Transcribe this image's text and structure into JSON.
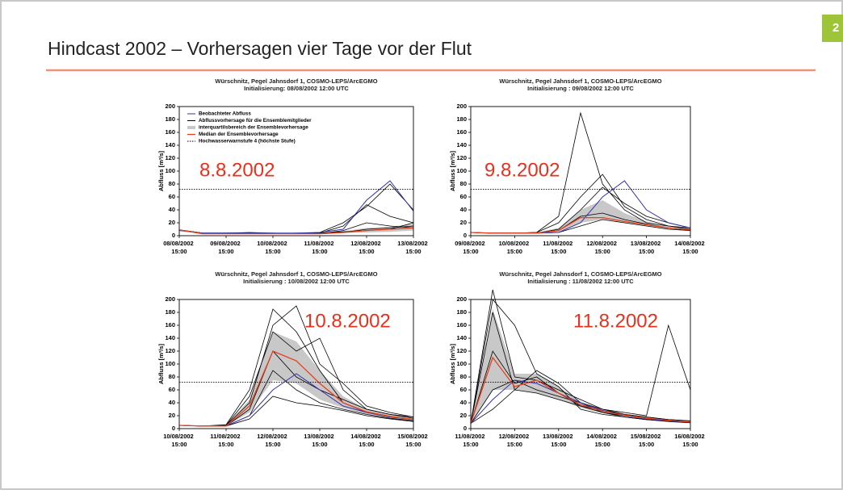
{
  "slide": {
    "title": "Hindcast 2002 – Vorhersagen vier Tage vor der Flut",
    "page_number": "2"
  },
  "chart_data": [
    {
      "type": "ensemble-line",
      "title": "Würschnitz, Pegel Jahnsdorf 1, COSMO-LEPS/ArcEGMO",
      "subtitle": "Initialisierung: 08/08/2002 12:00 UTC",
      "annotation": "8.8.2002",
      "y_label": "Abfluss [m³/s]",
      "legend": [
        "Beobachteter Abfluss",
        "Abflussvorhersage für die Ensemblemitglieder",
        "interquartilsbereich der Ensemblevorhersage",
        "Median der Ensemblevorhersage",
        "Hochwasserwarnstufe 4 (höchste Stufe)"
      ],
      "x": [
        "08/08/2002 15:00",
        "09/08/2002 03:00",
        "09/08/2002 15:00",
        "10/08/2002 03:00",
        "10/08/2002 15:00",
        "11/08/2002 03:00",
        "11/08/2002 15:00",
        "12/08/2002 03:00",
        "12/08/2002 15:00",
        "13/08/2002 03:00",
        "13/08/2002 15:00"
      ],
      "xlim": [
        "08/08/2002 15:00",
        "13/08/2002 15:00"
      ],
      "xticks": [
        "08/08/2002 15:00",
        "09/08/2002 15:00",
        "10/08/2002 15:00",
        "11/08/2002 15:00",
        "12/08/2002 15:00",
        "13/08/2002 15:00"
      ],
      "ylim": [
        0,
        200
      ],
      "yticks": [
        0,
        20,
        40,
        60,
        80,
        100,
        120,
        140,
        160,
        180,
        200
      ],
      "observed": {
        "color": "#3333aa",
        "values": [
          8,
          4,
          4,
          4,
          4,
          4,
          5,
          10,
          55,
          85,
          38
        ]
      },
      "members": {
        "color": "#000000",
        "values": [
          [
            9,
            4,
            4,
            5,
            4,
            3,
            5,
            20,
            45,
            80,
            40
          ],
          [
            9,
            3,
            4,
            4,
            3,
            3,
            4,
            15,
            48,
            30,
            20
          ],
          [
            9,
            4,
            3,
            3,
            3,
            3,
            3,
            8,
            20,
            15,
            12
          ],
          [
            9,
            3,
            3,
            3,
            3,
            3,
            3,
            5,
            10,
            12,
            15
          ],
          [
            9,
            4,
            4,
            4,
            3,
            4,
            4,
            6,
            8,
            10,
            20
          ]
        ]
      },
      "iqr": {
        "color": "#c8c8c8",
        "low": [
          8,
          3,
          3,
          3,
          3,
          3,
          3,
          4,
          5,
          6,
          8
        ],
        "high": [
          9,
          4,
          4,
          4,
          4,
          4,
          4,
          7,
          12,
          14,
          18
        ]
      },
      "median": {
        "color": "#e8401c",
        "values": [
          9,
          3,
          3,
          3,
          3,
          3,
          3,
          5,
          8,
          10,
          12
        ]
      },
      "threshold": {
        "color": "#000000",
        "value": 72
      }
    },
    {
      "type": "ensemble-line",
      "title": "Würschnitz, Pegel Jahnsdorf 1, COSMO-LEPS/ArcEGMO",
      "subtitle": "Initialisierung : 09/08/2002 12:00 UTC",
      "annotation": "9.8.2002",
      "y_label": "Abfluss [m³/s]",
      "x": [
        "09/08/2002 15:00",
        "10/08/2002 03:00",
        "10/08/2002 15:00",
        "11/08/2002 03:00",
        "11/08/2002 15:00",
        "12/08/2002 03:00",
        "12/08/2002 15:00",
        "13/08/2002 03:00",
        "13/08/2002 15:00",
        "14/08/2002 03:00",
        "14/08/2002 15:00"
      ],
      "xlim": [
        "09/08/2002 15:00",
        "14/08/2002 15:00"
      ],
      "xticks": [
        "09/08/2002 15:00",
        "10/08/2002 15:00",
        "11/08/2002 15:00",
        "12/08/2002 15:00",
        "13/08/2002 15:00",
        "14/08/2002 15:00"
      ],
      "ylim": [
        0,
        200
      ],
      "yticks": [
        0,
        20,
        40,
        60,
        80,
        100,
        120,
        140,
        160,
        180,
        200
      ],
      "observed": {
        "color": "#3333aa",
        "values": [
          5,
          4,
          4,
          4,
          5,
          20,
          60,
          85,
          40,
          20,
          12
        ]
      },
      "members": {
        "color": "#000000",
        "values": [
          [
            5,
            4,
            4,
            5,
            30,
            190,
            80,
            40,
            20,
            15,
            12
          ],
          [
            5,
            4,
            4,
            5,
            20,
            60,
            95,
            45,
            25,
            15,
            10
          ],
          [
            5,
            4,
            4,
            4,
            10,
            40,
            75,
            50,
            30,
            20,
            12
          ],
          [
            5,
            4,
            4,
            4,
            8,
            30,
            35,
            25,
            18,
            12,
            8
          ],
          [
            5,
            4,
            4,
            4,
            5,
            15,
            25,
            20,
            15,
            10,
            8
          ]
        ]
      },
      "iqr": {
        "color": "#c8c8c8",
        "low": [
          5,
          4,
          4,
          4,
          6,
          20,
          25,
          20,
          15,
          10,
          7
        ],
        "high": [
          5,
          4,
          4,
          5,
          12,
          40,
          55,
          35,
          22,
          14,
          10
        ]
      },
      "median": {
        "color": "#e8401c",
        "values": [
          5,
          4,
          4,
          4,
          8,
          28,
          28,
          22,
          17,
          12,
          9
        ]
      },
      "threshold": {
        "color": "#000000",
        "value": 72
      }
    },
    {
      "type": "ensemble-line",
      "title": "Würschnitz, Pegel Jahnsdorf 1, COSMO-LEPS/ArcEGMO",
      "subtitle": "Initialisierung : 10/08/2002 12:00 UTC",
      "annotation": "10.8.2002",
      "y_label": "Abfluss [m³/s]",
      "x": [
        "10/08/2002 15:00",
        "11/08/2002 03:00",
        "11/08/2002 15:00",
        "12/08/2002 03:00",
        "12/08/2002 15:00",
        "13/08/2002 03:00",
        "13/08/2002 15:00",
        "14/08/2002 03:00",
        "14/08/2002 15:00",
        "15/08/2002 03:00",
        "15/08/2002 15:00"
      ],
      "xlim": [
        "10/08/2002 15:00",
        "15/08/2002 15:00"
      ],
      "xticks": [
        "10/08/2002 15:00",
        "11/08/2002 15:00",
        "12/08/2002 15:00",
        "13/08/2002 15:00",
        "14/08/2002 15:00",
        "15/08/2002 15:00"
      ],
      "ylim": [
        0,
        200
      ],
      "yticks": [
        0,
        20,
        40,
        60,
        80,
        100,
        120,
        140,
        160,
        180,
        200
      ],
      "observed": {
        "color": "#3333aa",
        "values": [
          5,
          4,
          4,
          20,
          60,
          85,
          60,
          35,
          25,
          18,
          14
        ]
      },
      "members": {
        "color": "#000000",
        "values": [
          [
            5,
            4,
            6,
            60,
            185,
            150,
            90,
            40,
            25,
            18,
            14
          ],
          [
            5,
            4,
            5,
            40,
            160,
            190,
            100,
            70,
            35,
            25,
            18
          ],
          [
            5,
            4,
            4,
            30,
            120,
            80,
            60,
            45,
            30,
            22,
            16
          ],
          [
            5,
            4,
            4,
            20,
            90,
            60,
            40,
            30,
            22,
            16,
            12
          ],
          [
            5,
            4,
            5,
            50,
            150,
            120,
            140,
            60,
            30,
            22,
            18
          ],
          [
            5,
            4,
            4,
            15,
            50,
            40,
            35,
            28,
            20,
            15,
            11
          ]
        ]
      },
      "iqr": {
        "color": "#c8c8c8",
        "low": [
          5,
          4,
          4,
          25,
          75,
          70,
          45,
          32,
          22,
          16,
          12
        ],
        "high": [
          5,
          4,
          5,
          45,
          150,
          135,
          90,
          50,
          30,
          22,
          16
        ]
      },
      "median": {
        "color": "#e8401c",
        "values": [
          5,
          4,
          4,
          35,
          120,
          105,
          70,
          40,
          26,
          19,
          14
        ]
      },
      "threshold": {
        "color": "#000000",
        "value": 72
      }
    },
    {
      "type": "ensemble-line",
      "title": "Würschnitz, Pegel Jahnsdorf 1, COSMO-LEPS/ArcEGMO",
      "subtitle": "Initialisierung : 11/08/2002 12:00 UTC",
      "annotation": "11.8.2002",
      "y_label": "Abfluss [m³/s]",
      "x": [
        "11/08/2002 15:00",
        "12/08/2002 03:00",
        "12/08/2002 15:00",
        "13/08/2002 03:00",
        "13/08/2002 15:00",
        "14/08/2002 03:00",
        "14/08/2002 15:00",
        "15/08/2002 03:00",
        "15/08/2002 15:00",
        "16/08/2002 03:00",
        "16/08/2002 15:00"
      ],
      "xlim": [
        "11/08/2002 15:00",
        "16/08/2002 15:00"
      ],
      "xticks": [
        "11/08/2002 15:00",
        "12/08/2002 15:00",
        "13/08/2002 15:00",
        "14/08/2002 15:00",
        "15/08/2002 15:00",
        "16/08/2002 15:00"
      ],
      "ylim": [
        0,
        200
      ],
      "yticks": [
        0,
        20,
        40,
        60,
        80,
        100,
        120,
        140,
        160,
        180,
        200
      ],
      "observed": {
        "color": "#3333aa",
        "values": [
          8,
          45,
          75,
          70,
          55,
          40,
          28,
          20,
          15,
          12,
          10
        ]
      },
      "members": {
        "color": "#000000",
        "values": [
          [
            8,
            215,
            80,
            75,
            60,
            45,
            30,
            25,
            20,
            160,
            60
          ],
          [
            8,
            180,
            60,
            90,
            70,
            40,
            25,
            18,
            14,
            12,
            10
          ],
          [
            8,
            120,
            70,
            80,
            55,
            35,
            25,
            20,
            16,
            12,
            10
          ],
          [
            8,
            60,
            75,
            60,
            50,
            40,
            30,
            22,
            18,
            14,
            12
          ],
          [
            8,
            200,
            160,
            85,
            65,
            30,
            22,
            18,
            14,
            11,
            9
          ],
          [
            8,
            30,
            60,
            55,
            45,
            35,
            28,
            22,
            18,
            14,
            12
          ]
        ]
      },
      "iqr": {
        "color": "#c8c8c8",
        "low": [
          8,
          60,
          60,
          55,
          45,
          32,
          24,
          19,
          15,
          12,
          10
        ],
        "high": [
          8,
          185,
          85,
          85,
          65,
          42,
          30,
          23,
          18,
          14,
          12
        ]
      },
      "median": {
        "color": "#e8401c",
        "values": [
          8,
          110,
          65,
          75,
          55,
          37,
          27,
          21,
          16,
          13,
          10
        ]
      },
      "threshold": {
        "color": "#000000",
        "value": 72
      }
    }
  ]
}
